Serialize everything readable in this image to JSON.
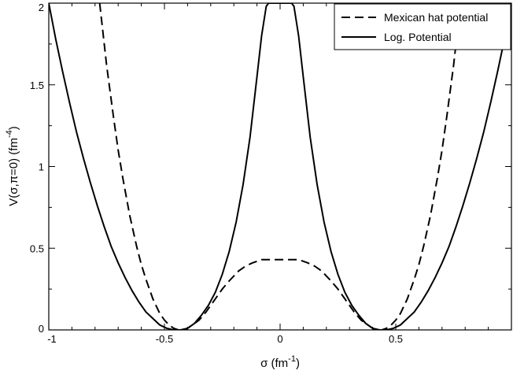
{
  "chart_data": {
    "type": "line",
    "xlabel": "σ (fm",
    "xlabel_sup": "-1",
    "xlabel_close": ")",
    "ylabel": "V(σ,π=0) (fm",
    "ylabel_sup": "-4",
    "ylabel_close": ")",
    "xlim": [
      -1,
      1
    ],
    "ylim": [
      0,
      2
    ],
    "x_ticks": [
      -1,
      -0.5,
      0,
      0.5
    ],
    "x_tick_labels": [
      "-1",
      "-0.5",
      "0",
      "0.5"
    ],
    "y_ticks": [
      0,
      0.5,
      1,
      1.5,
      2
    ],
    "y_tick_labels": [
      "0",
      "0.5",
      "1",
      "1.5",
      "2"
    ],
    "grid": false,
    "legend": "top-right",
    "series": [
      {
        "name": "Mexican hat potential",
        "style": "dashed",
        "color": "#000000",
        "x": [
          -0.78,
          -0.75,
          -0.72,
          -0.7,
          -0.68,
          -0.65,
          -0.62,
          -0.6,
          -0.58,
          -0.55,
          -0.52,
          -0.5,
          -0.48,
          -0.46,
          -0.44,
          -0.42,
          -0.4,
          -0.38,
          -0.35,
          -0.32,
          -0.3,
          -0.28,
          -0.25,
          -0.22,
          -0.2,
          -0.18,
          -0.15,
          -0.12,
          -0.1,
          -0.08,
          -0.05,
          -0.02,
          0.0,
          0.02,
          0.05,
          0.08,
          0.1,
          0.12,
          0.15,
          0.18,
          0.2,
          0.22,
          0.25,
          0.28,
          0.3,
          0.32,
          0.35,
          0.38,
          0.4,
          0.42,
          0.44,
          0.46,
          0.48,
          0.5,
          0.52,
          0.55,
          0.58,
          0.6,
          0.62,
          0.65,
          0.68,
          0.7,
          0.72,
          0.75,
          0.78
        ],
        "y": [
          2.0,
          1.62,
          1.3,
          1.1,
          0.93,
          0.7,
          0.51,
          0.4,
          0.31,
          0.19,
          0.1,
          0.06,
          0.03,
          0.01,
          0.0,
          0.0,
          0.01,
          0.03,
          0.06,
          0.11,
          0.15,
          0.19,
          0.25,
          0.3,
          0.33,
          0.36,
          0.39,
          0.41,
          0.42,
          0.43,
          0.43,
          0.43,
          0.43,
          0.43,
          0.43,
          0.43,
          0.42,
          0.41,
          0.39,
          0.36,
          0.33,
          0.3,
          0.25,
          0.19,
          0.15,
          0.11,
          0.06,
          0.03,
          0.01,
          0.0,
          0.0,
          0.01,
          0.03,
          0.06,
          0.1,
          0.19,
          0.31,
          0.4,
          0.51,
          0.7,
          0.93,
          1.1,
          1.3,
          1.62,
          2.0
        ]
      },
      {
        "name": "Log. Potential",
        "style": "solid",
        "color": "#000000",
        "x": [
          -1.0,
          -0.97,
          -0.94,
          -0.91,
          -0.88,
          -0.85,
          -0.82,
          -0.79,
          -0.76,
          -0.73,
          -0.7,
          -0.67,
          -0.64,
          -0.61,
          -0.58,
          -0.55,
          -0.52,
          -0.49,
          -0.46,
          -0.43,
          -0.4,
          -0.37,
          -0.34,
          -0.31,
          -0.28,
          -0.25,
          -0.22,
          -0.19,
          -0.16,
          -0.13,
          -0.1,
          -0.08,
          -0.06,
          -0.05,
          0.05,
          0.06,
          0.08,
          0.1,
          0.13,
          0.16,
          0.19,
          0.22,
          0.25,
          0.28,
          0.31,
          0.34,
          0.37,
          0.4,
          0.43,
          0.46,
          0.49,
          0.52,
          0.55,
          0.58,
          0.61,
          0.64,
          0.67,
          0.7,
          0.73,
          0.76,
          0.79,
          0.82,
          0.85,
          0.88,
          0.91,
          0.94,
          0.97,
          1.0
        ],
        "y": [
          2.0,
          1.78,
          1.58,
          1.39,
          1.21,
          1.05,
          0.9,
          0.76,
          0.63,
          0.51,
          0.41,
          0.32,
          0.24,
          0.17,
          0.11,
          0.07,
          0.03,
          0.01,
          0.0,
          0.0,
          0.01,
          0.04,
          0.09,
          0.15,
          0.23,
          0.34,
          0.48,
          0.66,
          0.89,
          1.18,
          1.55,
          1.8,
          1.98,
          2.0,
          2.0,
          1.98,
          1.8,
          1.55,
          1.18,
          0.89,
          0.66,
          0.48,
          0.34,
          0.23,
          0.15,
          0.09,
          0.04,
          0.01,
          0.0,
          0.0,
          0.01,
          0.03,
          0.07,
          0.11,
          0.17,
          0.24,
          0.32,
          0.41,
          0.51,
          0.63,
          0.76,
          0.9,
          1.05,
          1.21,
          1.39,
          1.58,
          1.78,
          2.0
        ]
      }
    ]
  }
}
